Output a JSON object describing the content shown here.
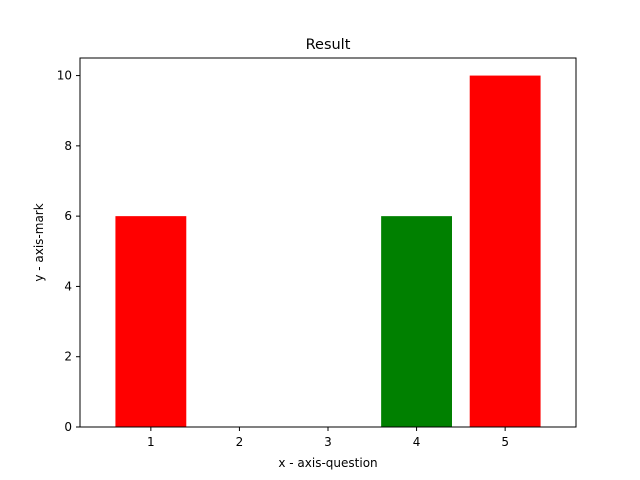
{
  "chart_data": {
    "type": "bar",
    "title": "Result",
    "xlabel": "x - axis-question",
    "ylabel": "y - axis-mark",
    "categories": [
      "1",
      "2",
      "3",
      "4",
      "5"
    ],
    "values": [
      6,
      0,
      0,
      6,
      10
    ],
    "bar_colors": [
      "#ff0000",
      "#ff0000",
      "#ff0000",
      "#008000",
      "#ff0000"
    ],
    "ylim": [
      0,
      10.5
    ],
    "yticks": [
      0,
      2,
      4,
      6,
      8,
      10
    ],
    "grid": false,
    "legend": "none"
  }
}
